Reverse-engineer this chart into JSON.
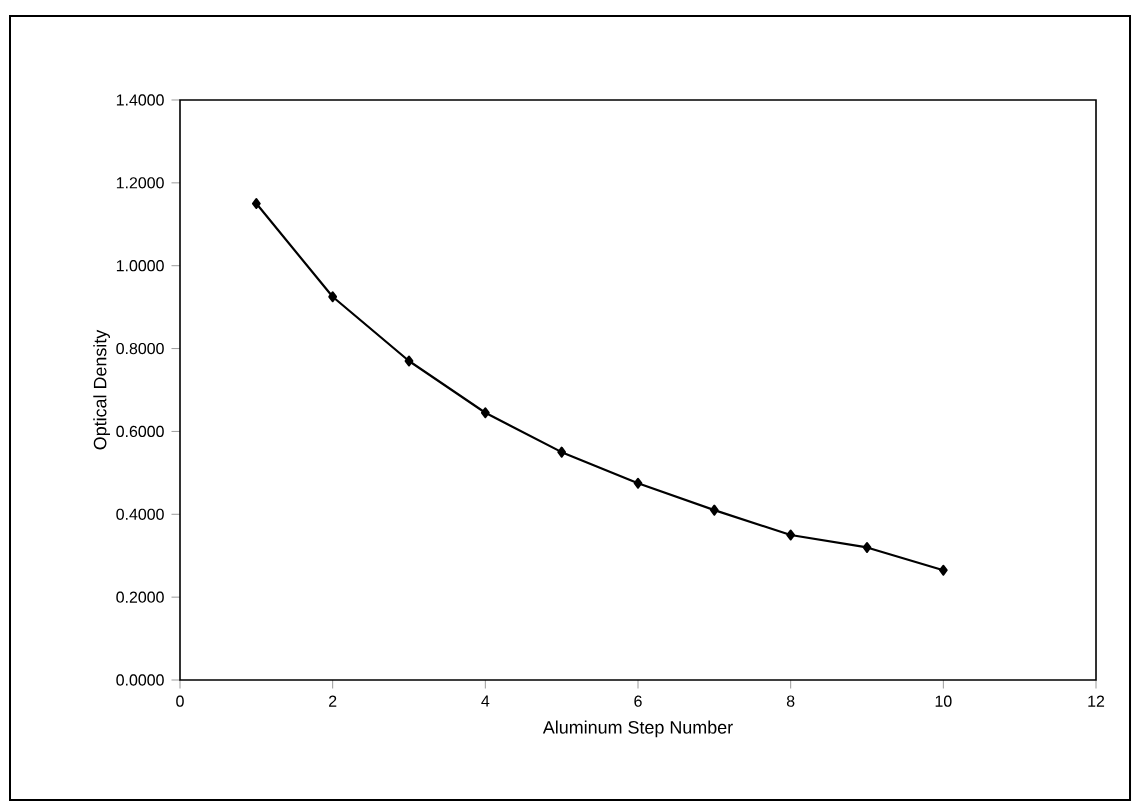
{
  "chart_data": {
    "type": "line",
    "xlabel": "Aluminum Step Number",
    "ylabel": "Optical Density",
    "x": [
      1,
      2,
      3,
      4,
      5,
      6,
      7,
      8,
      9,
      10
    ],
    "series": [
      {
        "color": "#000000",
        "values": [
          1.15,
          0.925,
          0.77,
          0.645,
          0.55,
          0.475,
          0.41,
          0.35,
          0.32,
          0.265
        ]
      }
    ],
    "xlim": [
      0,
      12
    ],
    "xticks": [
      0,
      2,
      4,
      6,
      8,
      10,
      12
    ],
    "ylim": [
      0,
      1.4
    ],
    "yticks": [
      {
        "value": 0,
        "label": "0.0000"
      },
      {
        "value": 0.2,
        "label": "0.2000"
      },
      {
        "value": 0.4,
        "label": "0.4000"
      },
      {
        "value": 0.6,
        "label": "0.6000"
      },
      {
        "value": 0.8,
        "label": "0.8000"
      },
      {
        "value": 1.0,
        "label": "1.0000"
      },
      {
        "value": 1.2,
        "label": "1.2000"
      },
      {
        "value": 1.4,
        "label": "1.4000"
      }
    ],
    "marker": "diamond",
    "line_style": "solid"
  }
}
